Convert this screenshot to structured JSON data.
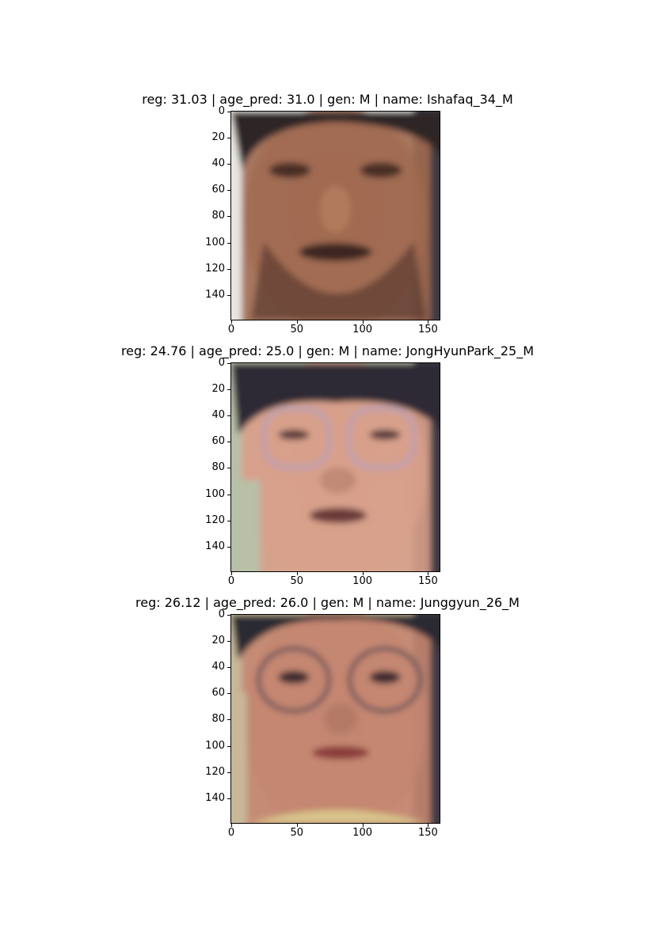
{
  "panels": [
    {
      "title": "reg: 31.03 | age_pred: 31.0 | gen: M | name: Ishafaq_34_M",
      "yticks": [
        "0",
        "20",
        "40",
        "60",
        "80",
        "100",
        "120",
        "140"
      ],
      "xticks": [
        "0",
        "50",
        "100",
        "150"
      ],
      "image": {
        "subject": "face of man with dark hair, beard and mustache",
        "skin": "#a06a50",
        "hair": "#2e2628",
        "background_left": "#e8e6e2"
      }
    },
    {
      "title": "reg: 24.76 | age_pred: 25.0 | gen: M | name: JongHyunPark_25_M",
      "yticks": [
        "0",
        "20",
        "40",
        "60",
        "80",
        "100",
        "120",
        "140"
      ],
      "xticks": [
        "0",
        "50",
        "100",
        "150"
      ],
      "image": {
        "subject": "face of young man with bangs and light-framed glasses",
        "skin": "#d8a08a",
        "hair": "#2e2a36",
        "background_left": "#b8c0a8"
      }
    },
    {
      "title": "reg: 26.12 | age_pred: 26.0 | gen: M | name: Junggyun_26_M",
      "yticks": [
        "0",
        "20",
        "40",
        "60",
        "80",
        "100",
        "120",
        "140"
      ],
      "xticks": [
        "0",
        "50",
        "100",
        "150"
      ],
      "image": {
        "subject": "face of young man with round metal glasses",
        "skin": "#c48670",
        "hair": "#2a2a32",
        "background_left": "#c8b898"
      }
    }
  ]
}
